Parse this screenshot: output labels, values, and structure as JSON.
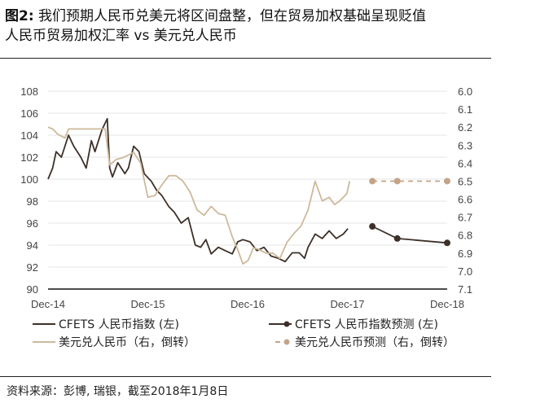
{
  "title": {
    "prefix": "图2:",
    "line1": " 我们预期人民币兑美元将区间盘整，但在贸易加权基础呈现贬值",
    "line2": "人民币贸易加权汇率 vs 美元兑人民币"
  },
  "footer": "资料来源：彭博, 瑞银，截至2018年1月8日",
  "chart_data": {
    "type": "line",
    "x_unit": "months since Dec-14",
    "xlim": [
      0,
      48
    ],
    "x_ticks": [
      {
        "m": 0,
        "label": "Dec-14"
      },
      {
        "m": 12,
        "label": "Dec-15"
      },
      {
        "m": 24,
        "label": "Dec-16"
      },
      {
        "m": 36,
        "label": "Dec-17"
      },
      {
        "m": 48,
        "label": "Dec-18"
      }
    ],
    "left_axis": {
      "ylim": [
        90,
        108
      ],
      "ticks": [
        "90",
        "92",
        "94",
        "96",
        "98",
        "100",
        "102",
        "104",
        "106",
        "108"
      ]
    },
    "right_axis": {
      "ylim": [
        6.0,
        7.1
      ],
      "inverted": true,
      "ticks": [
        "6.0",
        "6.1",
        "6.2",
        "6.3",
        "6.4",
        "6.5",
        "6.6",
        "6.7",
        "6.8",
        "6.9",
        "7.0",
        "7.1"
      ]
    },
    "grid": true,
    "legend_position": "bottom",
    "colors": {
      "cfets": "#3d3029",
      "usdcny": "#cdb99b",
      "usd_forecast": "#c4a388",
      "axis": "#111111",
      "grid": "#e6e6e6"
    },
    "series": [
      {
        "name": "CFETS 人民币指数 (左)",
        "axis": "left",
        "style": "solid",
        "key": "cfets",
        "x": [
          0,
          0.55,
          0.97,
          1.61,
          2.46,
          3.09,
          3.94,
          4.58,
          5.21,
          5.64,
          6.48,
          7.12,
          7.42,
          7.75,
          8.39,
          9.24,
          9.66,
          10.3,
          10.93,
          11.57,
          12.42,
          13.05,
          13.69,
          14.53,
          15.17,
          16.02,
          16.86,
          17.71,
          18.35,
          18.98,
          19.62,
          20.47,
          21.31,
          22.16,
          22.8,
          23.43,
          24.28,
          25.13,
          25.97,
          26.82,
          27.67,
          28.52,
          29.36,
          30.21,
          30.85,
          31.27,
          32.12,
          32.97,
          33.81,
          34.66,
          35.5,
          36.06
        ],
        "values": [
          100,
          101,
          102.5,
          102,
          104,
          103,
          102,
          101,
          103.5,
          102.5,
          104.5,
          105.5,
          101,
          100.2,
          101.5,
          100.5,
          101,
          103,
          102.5,
          100.5,
          99.8,
          99,
          98.5,
          97.5,
          97,
          96,
          96.5,
          94,
          93.8,
          94.5,
          93.2,
          93.8,
          93.5,
          93.2,
          94.3,
          94.5,
          94.3,
          93.5,
          93.8,
          93,
          92.8,
          92.5,
          93.3,
          93.3,
          92.8,
          93.8,
          95,
          94.6,
          95.3,
          94.6,
          95,
          95.5
        ]
      },
      {
        "name": "CFETS 人民币指数预测 (左)",
        "axis": "left",
        "style": "solid-markers",
        "key": "cfets",
        "x": [
          39,
          42,
          48
        ],
        "values": [
          95.7,
          94.6,
          94.2
        ]
      },
      {
        "name": "美元兑人民币（右，倒转）",
        "axis": "right",
        "style": "solid",
        "key": "usdcny",
        "x": [
          0,
          0.55,
          1.19,
          2.03,
          2.46,
          4.75,
          6.87,
          7.42,
          8.18,
          8.98,
          9.87,
          10.3,
          11.14,
          12,
          12.84,
          13.69,
          14.53,
          15.38,
          16.22,
          17.07,
          17.92,
          18.77,
          19.62,
          20.47,
          21.31,
          22.16,
          22.8,
          23.43,
          24.07,
          24.7,
          25.34,
          26.19,
          27.03,
          27.88,
          28.73,
          29.58,
          30.42,
          31.27,
          32.12,
          32.97,
          33.81,
          34.45,
          35.08,
          35.93,
          36.27
        ],
        "values": [
          6.2,
          6.21,
          6.24,
          6.26,
          6.21,
          6.21,
          6.21,
          6.41,
          6.38,
          6.37,
          6.35,
          6.34,
          6.4,
          6.59,
          6.58,
          6.52,
          6.47,
          6.47,
          6.5,
          6.56,
          6.66,
          6.69,
          6.64,
          6.68,
          6.69,
          6.81,
          6.88,
          6.96,
          6.94,
          6.87,
          6.88,
          6.9,
          6.9,
          6.93,
          6.84,
          6.79,
          6.75,
          6.66,
          6.5,
          6.61,
          6.59,
          6.63,
          6.61,
          6.57,
          6.5
        ]
      },
      {
        "name": "美元兑人民币预测（右，倒转）",
        "axis": "right",
        "style": "dashed-markers",
        "key": "usd_forecast",
        "x": [
          39,
          42,
          48
        ],
        "values": [
          6.5,
          6.5,
          6.5
        ]
      }
    ]
  }
}
